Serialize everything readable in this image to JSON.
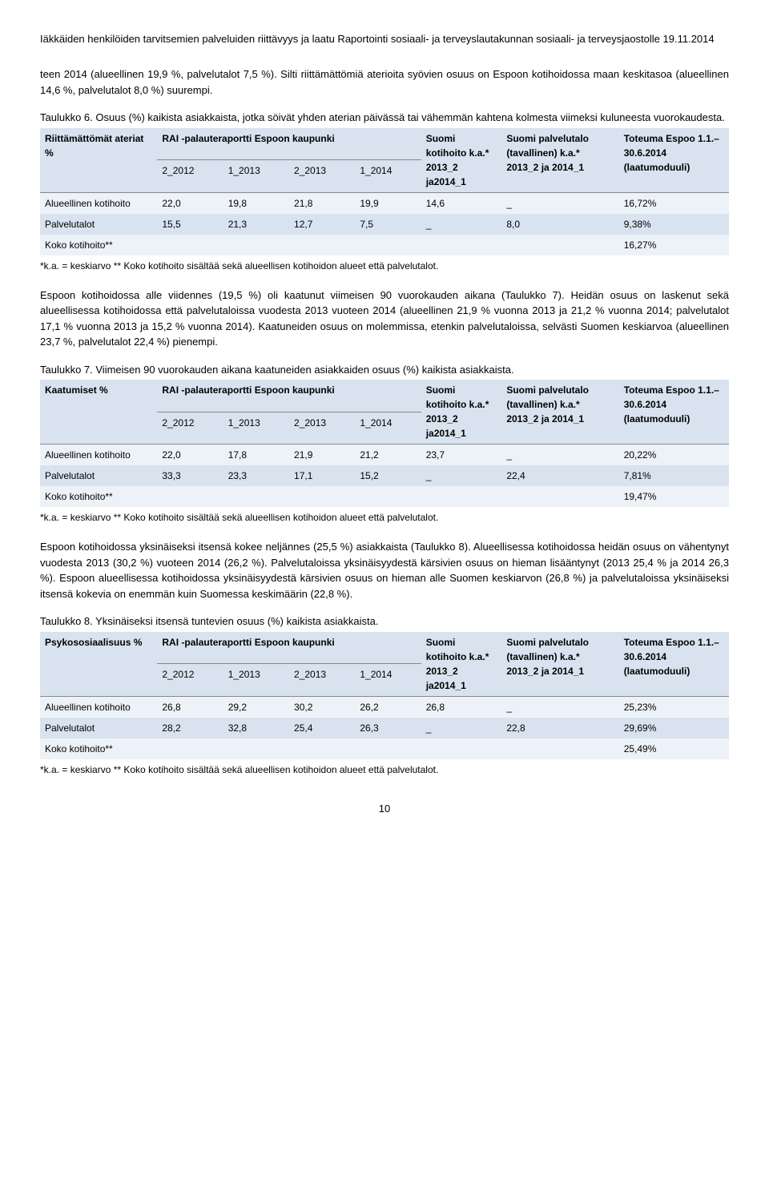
{
  "header": {
    "title": "Iäkkäiden henkilöiden tarvitsemien palveluiden riittävyys ja laatu Raportointi sosiaali- ja terveyslautakunnan sosiaali- ja terveysjaostolle 19.11.2014"
  },
  "intro": "teen 2014 (alueellinen 19,9 %, palvelutalot 7,5 %). Silti riittämättömiä aterioita syövien osuus on Espoon kotihoidossa maan keskitasoa (alueellinen 14,6 %, palvelutalot 8,0 %) suurempi.",
  "table6": {
    "caption": "Taulukko 6. Osuus (%) kaikista asiakkaista, jotka söivät yhden aterian päivässä tai vähemmän kahtena kolmesta viimeksi kuluneesta vuorokaudesta.",
    "h_label": "Riittämättömät ateriat %",
    "h_rai": "RAI -palauteraportti Espoon kaupunki",
    "h_suomi": "Suomi kotihoito k.a.* 2013_2 ja2014_1",
    "h_palv": "Suomi palvelutalo (tavallinen)  k.a.* 2013_2 ja 2014_1",
    "h_tot": "Toteuma Espoo 1.1.–30.6.2014 (laatumoduuli)",
    "sub": [
      "2_2012",
      "1_2013",
      "2_2013",
      "1_2014",
      "1_2014"
    ],
    "rows": [
      {
        "label": "Alueellinen kotihoito",
        "v": [
          "22,0",
          "19,8",
          "21,8",
          "19,9",
          "14,6",
          "_",
          "16,72%"
        ],
        "cls": "row-light"
      },
      {
        "label": "Palvelutalot",
        "v": [
          "15,5",
          "21,3",
          "12,7",
          "7,5",
          "_",
          "8,0",
          "9,38%"
        ],
        "cls": "row-dark"
      },
      {
        "label": "Koko kotihoito**",
        "v": [
          "",
          "",
          "",
          "",
          "",
          "",
          "16,27%"
        ],
        "cls": "row-light"
      }
    ],
    "footnote": "*k.a. = keskiarvo ** Koko kotihoito sisältää sekä alueellisen kotihoidon alueet että palvelutalot."
  },
  "para2": "Espoon kotihoidossa alle viidennes (19,5 %) oli kaatunut viimeisen 90 vuorokauden aikana (Taulukko 7). Heidän osuus on laskenut sekä alueellisessa kotihoidossa että palvelutaloissa vuodesta 2013 vuoteen 2014 (alueellinen 21,9 % vuonna 2013 ja 21,2 % vuonna 2014; palvelutalot 17,1 % vuonna 2013 ja 15,2 % vuonna 2014). Kaatuneiden osuus on molemmissa, etenkin palvelutaloissa, selvästi Suomen keskiarvoa (alueellinen 23,7 %, palvelutalot 22,4 %) pienempi.",
  "table7": {
    "caption": "Taulukko 7. Viimeisen 90 vuorokauden aikana kaatuneiden asiakkaiden osuus (%) kaikista asiakkaista.",
    "h_label": "Kaatumiset %",
    "h_rai": "RAI -palauteraportti Espoon kaupunki",
    "h_suomi": "Suomi kotihoito k.a.* 2013_2 ja2014_1",
    "h_palv": "Suomi palvelutalo (tavallinen) k.a.* 2013_2 ja 2014_1",
    "h_tot": "Toteuma Espoo 1.1.–30.6.2014 (laatumoduuli)",
    "sub": [
      "2_2012",
      "1_2013",
      "2_2013",
      "1_2014",
      "1_2014"
    ],
    "rows": [
      {
        "label": "Alueellinen kotihoito",
        "v": [
          "22,0",
          "17,8",
          "21,9",
          "21,2",
          "23,7",
          "_",
          "20,22%"
        ],
        "cls": "row-light"
      },
      {
        "label": "Palvelutalot",
        "v": [
          "33,3",
          "23,3",
          "17,1",
          "15,2",
          "_",
          "22,4",
          "7,81%"
        ],
        "cls": "row-dark"
      },
      {
        "label": "Koko kotihoito**",
        "v": [
          "",
          "",
          "",
          "",
          "",
          "",
          "19,47%"
        ],
        "cls": "row-light"
      }
    ],
    "footnote": "*k.a. = keskiarvo ** Koko kotihoito sisältää sekä alueellisen kotihoidon alueet että palvelutalot."
  },
  "para3": "Espoon kotihoidossa yksinäiseksi itsensä kokee neljännes (25,5 %) asiakkaista (Taulukko 8). Alueellisessa kotihoidossa heidän osuus on vähentynyt vuodesta 2013 (30,2 %) vuoteen 2014 (26,2 %). Palvelutaloissa yksinäisyydestä kärsivien osuus on hieman lisääntynyt (2013 25,4 % ja 2014 26,3 %). Espoon alueellisessa kotihoidossa yksinäisyydestä kärsivien osuus on hieman alle Suomen keskiarvon (26,8 %) ja palvelutaloissa yksinäiseksi itsensä kokevia on enemmän kuin Suomessa keskimäärin (22,8 %).",
  "table8": {
    "caption": "Taulukko 8. Yksinäiseksi itsensä tuntevien osuus (%) kaikista asiakkaista.",
    "h_label": "Psykososiaalisuus %",
    "h_rai": "RAI -palauteraportti Espoon kaupunki",
    "h_suomi": "Suomi kotihoito k.a.* 2013_2 ja2014_1",
    "h_palv": "Suomi palvelutalo (tavallinen) k.a.* 2013_2 ja 2014_1",
    "h_tot": "Toteuma Espoo 1.1.–30.6.2014 (laatumoduuli)",
    "sub": [
      "2_2012",
      "1_2013",
      "2_2013",
      "1_2014",
      "1_2014"
    ],
    "rows": [
      {
        "label": "Alueellinen kotihoito",
        "v": [
          "26,8",
          "29,2",
          "30,2",
          "26,2",
          "26,8",
          "_",
          "25,23%"
        ],
        "cls": "row-light"
      },
      {
        "label": "Palvelutalot",
        "v": [
          "28,2",
          "32,8",
          "25,4",
          "26,3",
          "_",
          "22,8",
          "29,69%"
        ],
        "cls": "row-dark"
      },
      {
        "label": "Koko kotihoito**",
        "v": [
          "",
          "",
          "",
          "",
          "",
          "",
          "25,49%"
        ],
        "cls": "row-light"
      }
    ],
    "footnote": "*k.a. = keskiarvo ** Koko kotihoito sisältää sekä alueellisen kotihoidon alueet että palvelutalot."
  },
  "pagenum": "10"
}
